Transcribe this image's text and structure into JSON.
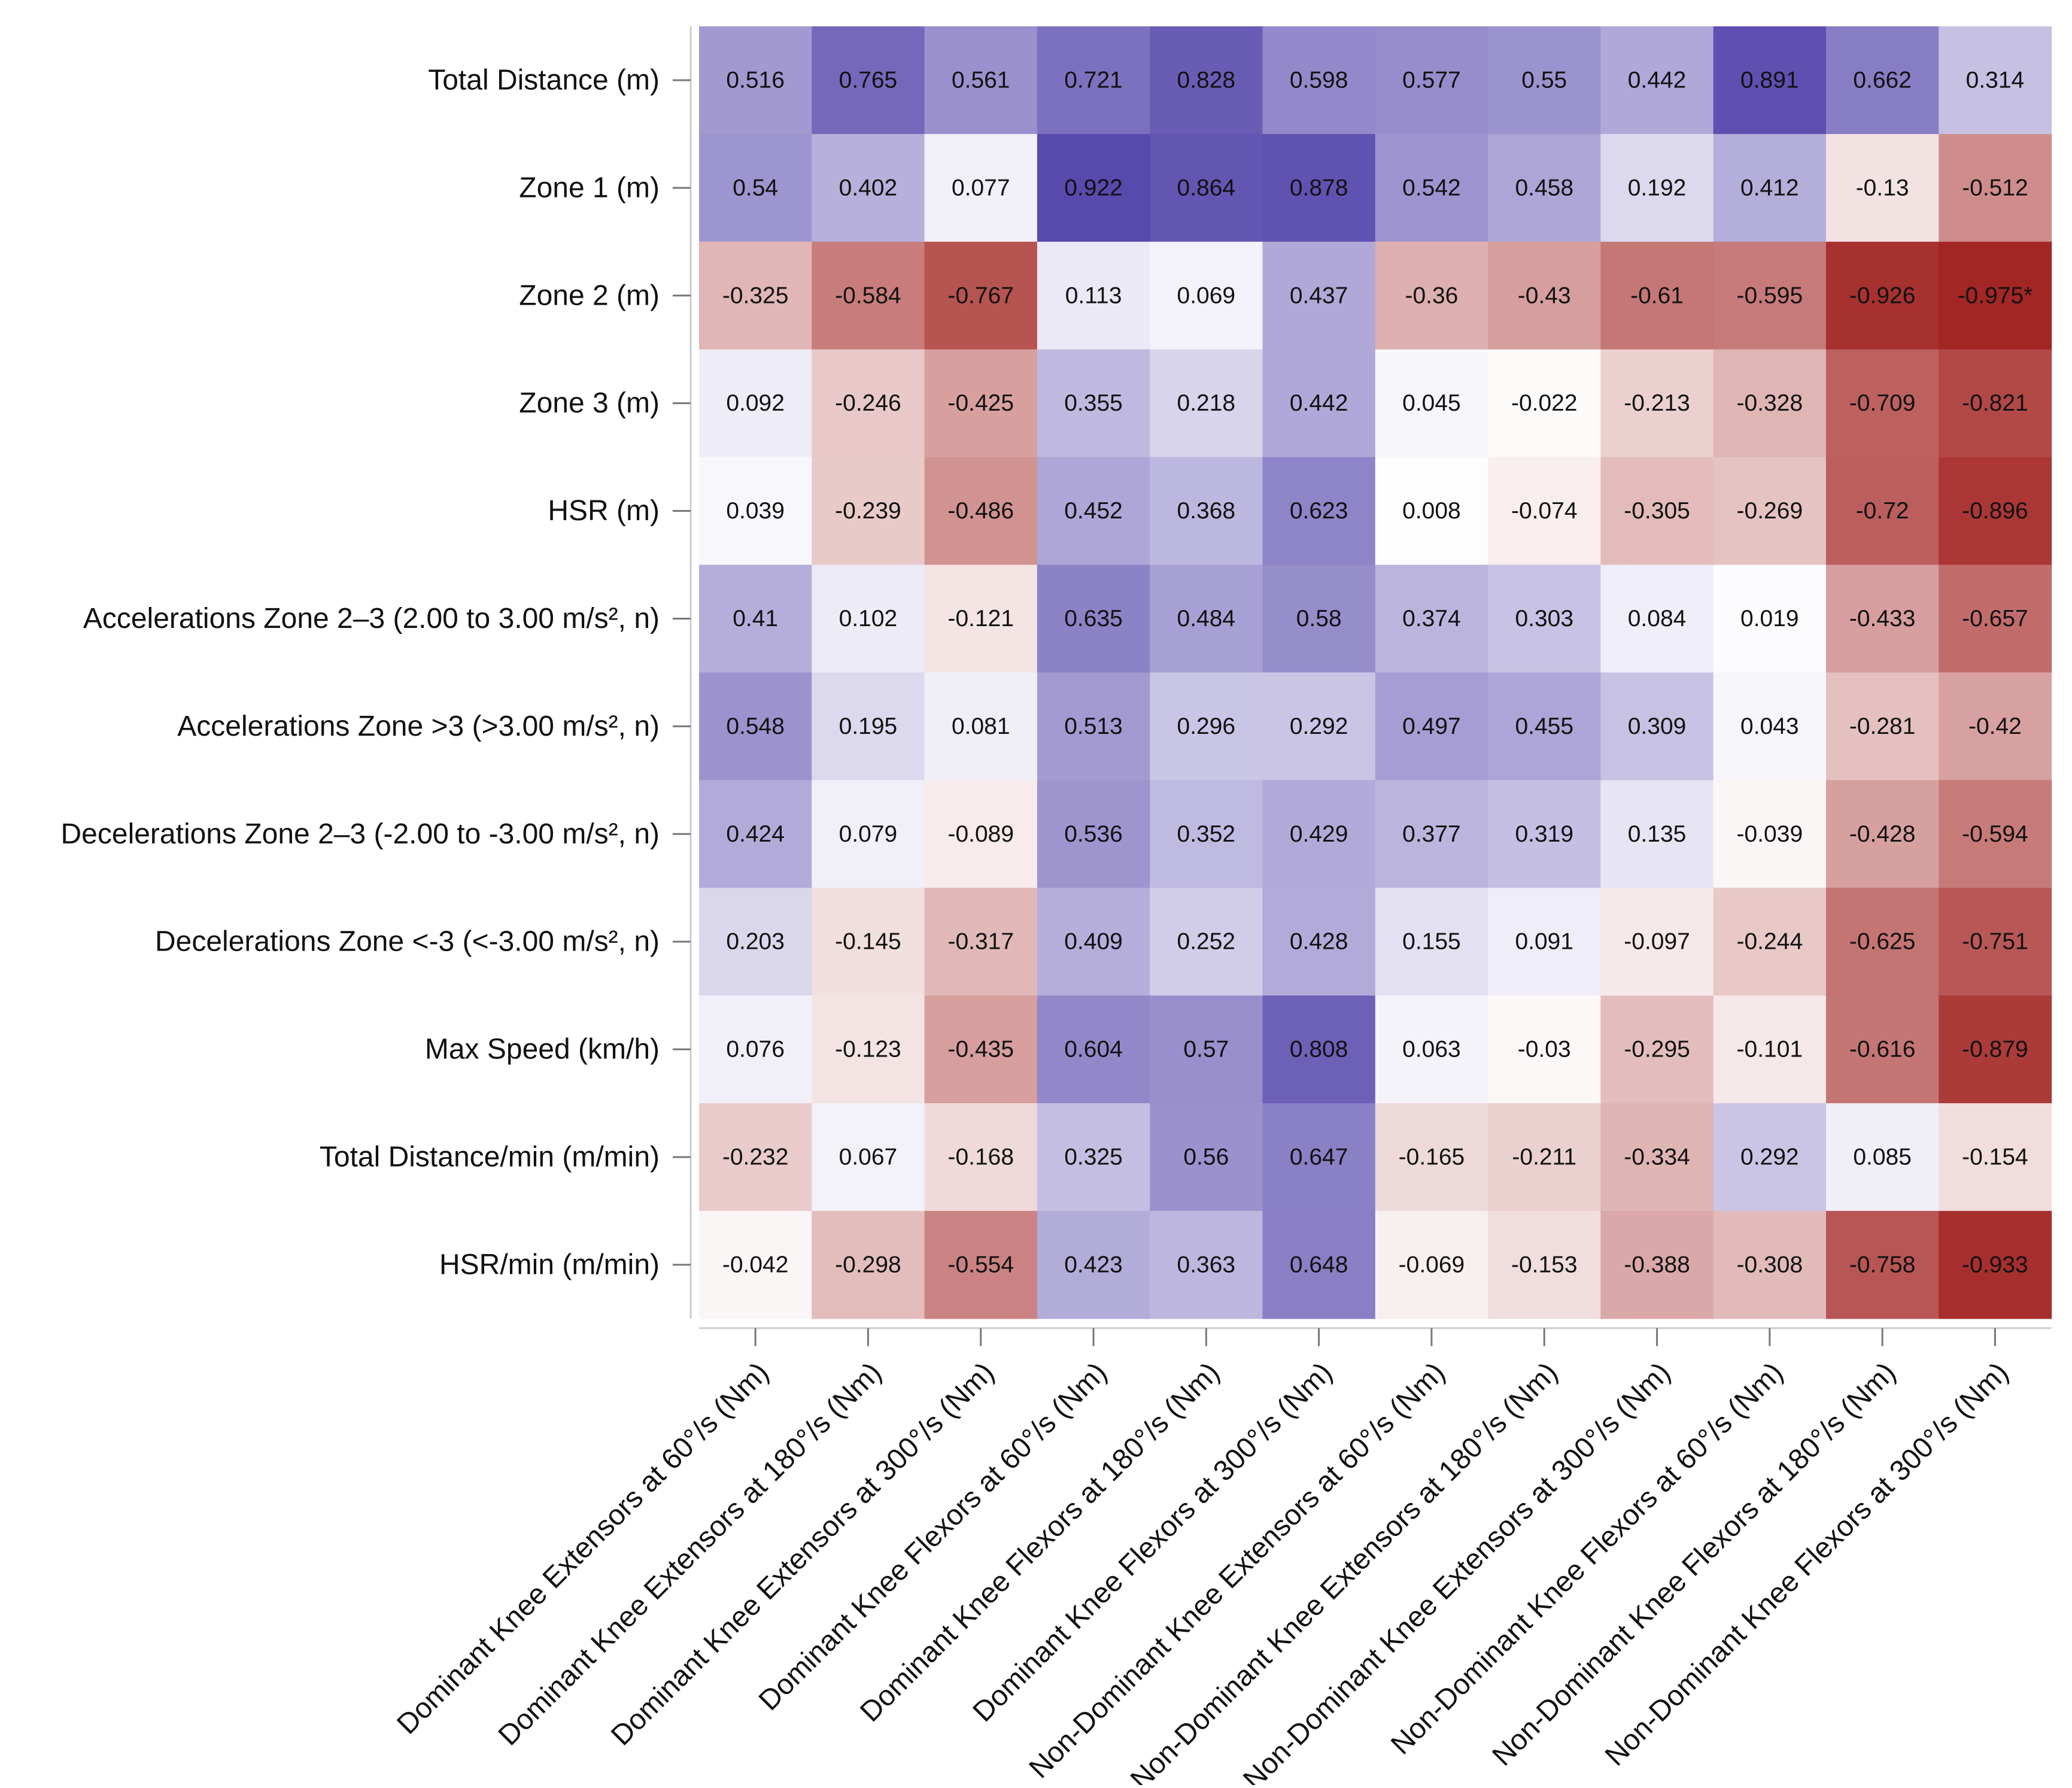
{
  "chart_data": {
    "type": "heatmap",
    "title": "",
    "xlabel": "",
    "ylabel": "",
    "value_range": [
      -1,
      1
    ],
    "colors": {
      "negative": "#a0201e",
      "zero": "#ffffff",
      "positive": "#4a3aa6"
    },
    "rows": [
      "Total Distance (m)",
      "Zone 1 (m)",
      "Zone 2 (m)",
      "Zone 3 (m)",
      "HSR (m)",
      "Accelerations Zone 2–3 (2.00 to 3.00 m/s², n)",
      "Accelerations Zone >3 (>3.00 m/s², n)",
      "Decelerations Zone 2–3 (-2.00 to -3.00 m/s², n)",
      "Decelerations Zone <-3 (<-3.00 m/s², n)",
      "Max Speed (km/h)",
      "Total Distance/min (m/min)",
      "HSR/min (m/min)"
    ],
    "columns": [
      "Dominant Knee Extensors at 60°/s (Nm)",
      "Dominant Knee Extensors at 180°/s (Nm)",
      "Dominant Knee Extensors at 300°/s (Nm)",
      "Dominant Knee Flexors at 60°/s (Nm)",
      "Dominant Knee Flexors at 180°/s (Nm)",
      "Dominant Knee Flexors at 300°/s (Nm)",
      "Non-Dominant Knee Extensors at 60°/s (Nm)",
      "Non-Dominant Knee Extensors at 180°/s (Nm)",
      "Non-Dominant Knee Extensors at 300°/s (Nm)",
      "Non-Dominant Knee Flexors at 60°/s (Nm)",
      "Non-Dominant Knee Flexors at 180°/s (Nm)",
      "Non-Dominant Knee Flexors at 300°/s (Nm)"
    ],
    "values": [
      [
        0.516,
        0.765,
        0.561,
        0.721,
        0.828,
        0.598,
        0.577,
        0.55,
        0.442,
        0.891,
        0.662,
        0.314
      ],
      [
        0.54,
        0.402,
        0.077,
        0.922,
        0.864,
        0.878,
        0.542,
        0.458,
        0.192,
        0.412,
        -0.13,
        -0.512
      ],
      [
        -0.325,
        -0.584,
        -0.767,
        0.113,
        0.069,
        0.437,
        -0.36,
        -0.43,
        -0.61,
        -0.595,
        -0.926,
        -0.975
      ],
      [
        0.092,
        -0.246,
        -0.425,
        0.355,
        0.218,
        0.442,
        0.045,
        -0.022,
        -0.213,
        -0.328,
        -0.709,
        -0.821
      ],
      [
        0.039,
        -0.239,
        -0.486,
        0.452,
        0.368,
        0.623,
        0.008,
        -0.074,
        -0.305,
        -0.269,
        -0.72,
        -0.896
      ],
      [
        0.41,
        0.102,
        -0.121,
        0.635,
        0.484,
        0.58,
        0.374,
        0.303,
        0.084,
        0.019,
        -0.433,
        -0.657
      ],
      [
        0.548,
        0.195,
        0.081,
        0.513,
        0.296,
        0.292,
        0.497,
        0.455,
        0.309,
        0.043,
        -0.281,
        -0.42
      ],
      [
        0.424,
        0.079,
        -0.089,
        0.536,
        0.352,
        0.429,
        0.377,
        0.319,
        0.135,
        -0.039,
        -0.428,
        -0.594
      ],
      [
        0.203,
        -0.145,
        -0.317,
        0.409,
        0.252,
        0.428,
        0.155,
        0.091,
        -0.097,
        -0.244,
        -0.625,
        -0.751
      ],
      [
        0.076,
        -0.123,
        -0.435,
        0.604,
        0.57,
        0.808,
        0.063,
        -0.03,
        -0.295,
        -0.101,
        -0.616,
        -0.879
      ],
      [
        -0.232,
        0.067,
        -0.168,
        0.325,
        0.56,
        0.647,
        -0.165,
        -0.211,
        -0.334,
        0.292,
        0.085,
        -0.154
      ],
      [
        -0.042,
        -0.298,
        -0.554,
        0.423,
        0.363,
        0.648,
        -0.069,
        -0.153,
        -0.388,
        -0.308,
        -0.758,
        -0.933
      ]
    ],
    "labels": [
      [
        "0.516",
        "0.765",
        "0.561",
        "0.721",
        "0.828",
        "0.598",
        "0.577",
        "0.55",
        "0.442",
        "0.891",
        "0.662",
        "0.314"
      ],
      [
        "0.54",
        "0.402",
        "0.077",
        "0.922",
        "0.864",
        "0.878",
        "0.542",
        "0.458",
        "0.192",
        "0.412",
        "-0.13",
        "-0.512"
      ],
      [
        "-0.325",
        "-0.584",
        "-0.767",
        "0.113",
        "0.069",
        "0.437",
        "-0.36",
        "-0.43",
        "-0.61",
        "-0.595",
        "-0.926",
        "-0.975*"
      ],
      [
        "0.092",
        "-0.246",
        "-0.425",
        "0.355",
        "0.218",
        "0.442",
        "0.045",
        "-0.022",
        "-0.213",
        "-0.328",
        "-0.709",
        "-0.821"
      ],
      [
        "0.039",
        "-0.239",
        "-0.486",
        "0.452",
        "0.368",
        "0.623",
        "0.008",
        "-0.074",
        "-0.305",
        "-0.269",
        "-0.72",
        "-0.896"
      ],
      [
        "0.41",
        "0.102",
        "-0.121",
        "0.635",
        "0.484",
        "0.58",
        "0.374",
        "0.303",
        "0.084",
        "0.019",
        "-0.433",
        "-0.657"
      ],
      [
        "0.548",
        "0.195",
        "0.081",
        "0.513",
        "0.296",
        "0.292",
        "0.497",
        "0.455",
        "0.309",
        "0.043",
        "-0.281",
        "-0.42"
      ],
      [
        "0.424",
        "0.079",
        "-0.089",
        "0.536",
        "0.352",
        "0.429",
        "0.377",
        "0.319",
        "0.135",
        "-0.039",
        "-0.428",
        "-0.594"
      ],
      [
        "0.203",
        "-0.145",
        "-0.317",
        "0.409",
        "0.252",
        "0.428",
        "0.155",
        "0.091",
        "-0.097",
        "-0.244",
        "-0.625",
        "-0.751"
      ],
      [
        "0.076",
        "-0.123",
        "-0.435",
        "0.604",
        "0.57",
        "0.808",
        "0.063",
        "-0.03",
        "-0.295",
        "-0.101",
        "-0.616",
        "-0.879"
      ],
      [
        "-0.232",
        "0.067",
        "-0.168",
        "0.325",
        "0.56",
        "0.647",
        "-0.165",
        "-0.211",
        "-0.334",
        "0.292",
        "0.085",
        "-0.154"
      ],
      [
        "-0.042",
        "-0.298",
        "-0.554",
        "0.423",
        "0.363",
        "0.648",
        "-0.069",
        "-0.153",
        "-0.388",
        "-0.308",
        "-0.758",
        "-0.933"
      ]
    ],
    "significance_marker": "*"
  }
}
